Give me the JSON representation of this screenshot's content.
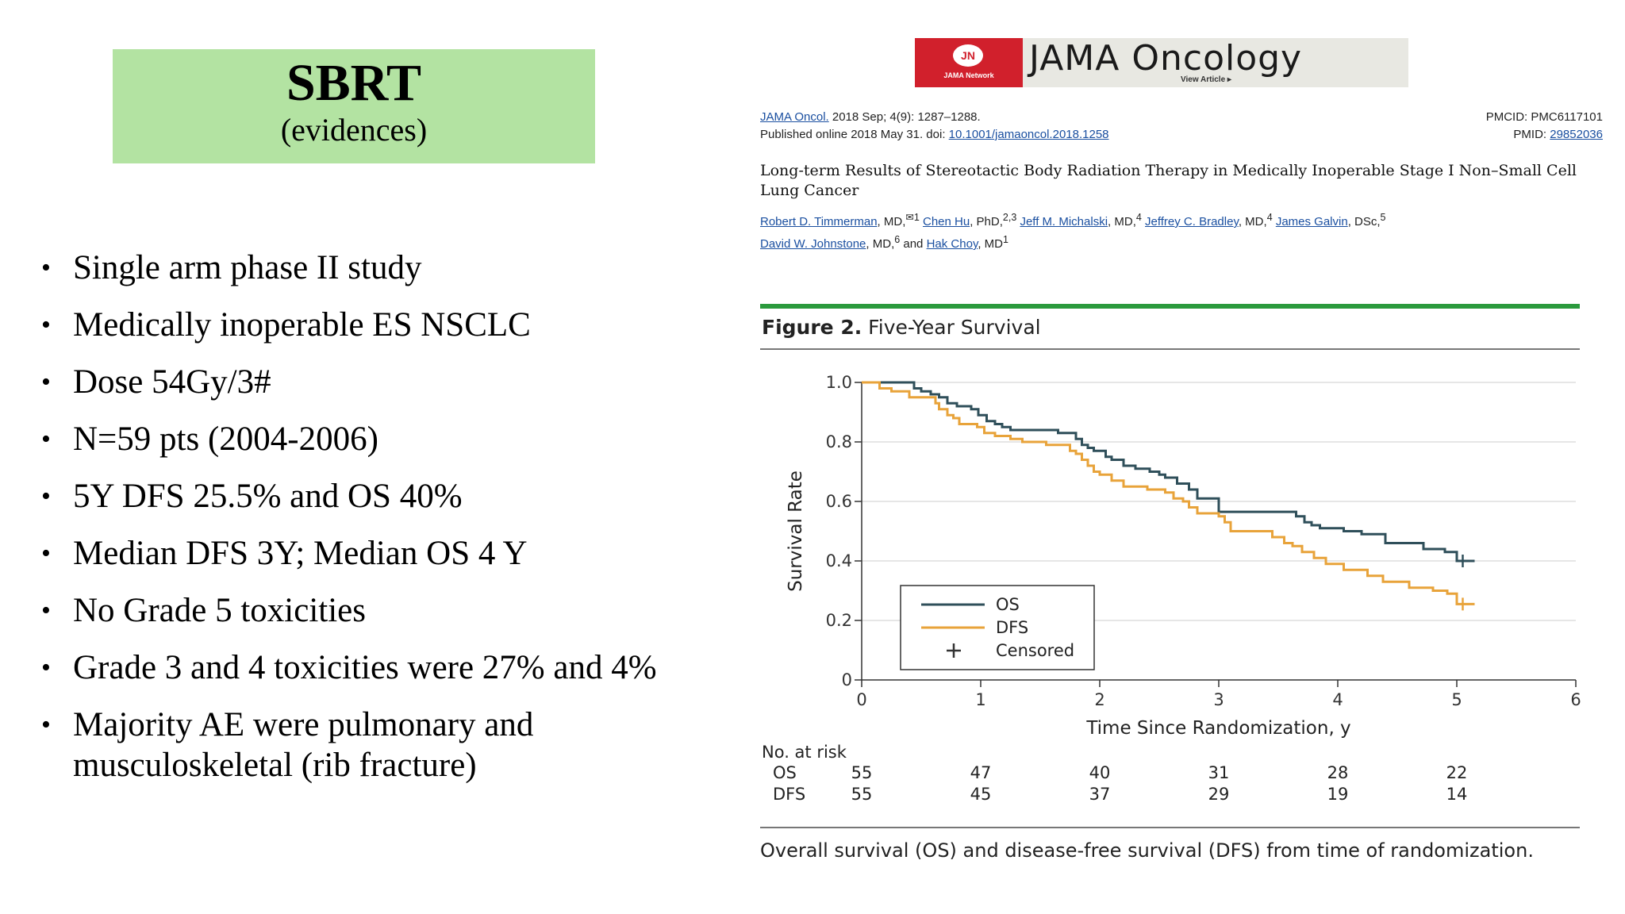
{
  "slide": {
    "title": "SBRT",
    "subtitle": "(evidences)",
    "bullets": [
      "Single arm phase II study",
      "Medically inoperable ES NSCLC",
      "Dose 54Gy/3#",
      "N=59 pts (2004-2006)",
      "5Y DFS 25.5% and OS 40%",
      "Median DFS 3Y; Median OS 4 Y",
      "No Grade 5 toxicities",
      "Grade 3 and 4 toxicities were 27% and 4%",
      "Majority AE were pulmonary and musculoskeletal (rib fracture)"
    ]
  },
  "article": {
    "journal": "JAMA Oncology",
    "logo_text": "JN",
    "network_label": "JAMA Network",
    "view_article": "View Article ▸",
    "journal_abbrev": "JAMA Oncol.",
    "citation": " 2018 Sep; 4(9): 1287–1288.",
    "published_prefix": "Published online 2018 May 31. doi: ",
    "doi": "10.1001/jamaoncol.2018.1258",
    "pmcid": "PMCID: PMC6117101",
    "pmid_label": "PMID: ",
    "pmid": "29852036",
    "title": "Long-term Results of Stereotactic Body Radiation Therapy in Medically Inoperable Stage I Non–Small Cell Lung Cancer",
    "authors": [
      {
        "name": "Robert D. Timmerman",
        "suffix": ", MD,",
        "sup": "✉1"
      },
      {
        "name": "Chen Hu",
        "suffix": ", PhD,",
        "sup": "2,3"
      },
      {
        "name": "Jeff M. Michalski",
        "suffix": ", MD,",
        "sup": "4"
      },
      {
        "name": "Jeffrey C. Bradley",
        "suffix": ", MD,",
        "sup": "4"
      },
      {
        "name": "James Galvin",
        "suffix": ", DSc,",
        "sup": "5"
      },
      {
        "name": "David W. Johnstone",
        "suffix": ", MD,",
        "sup": "6"
      },
      {
        "name": "Hak Choy",
        "suffix": ", MD",
        "sup": "1"
      }
    ],
    "and_word": " and ",
    "figure_label": "Figure 2.",
    "figure_title": " Five-Year Survival",
    "caption": "Overall survival (OS) and disease-free survival (DFS) from time of randomization."
  },
  "chart_data": {
    "type": "line",
    "xlabel": "Time Since Randomization, y",
    "ylabel": "Survival Rate",
    "xlim": [
      0,
      6
    ],
    "ylim": [
      0,
      1.0
    ],
    "x_ticks": [
      "0",
      "1",
      "2",
      "3",
      "4",
      "5",
      "6"
    ],
    "y_ticks": [
      "0",
      "0.2",
      "0.4",
      "0.6",
      "0.8",
      "1.0"
    ],
    "grid": true,
    "legend_position": "bottom-left",
    "series": [
      {
        "name": "OS",
        "color": "#2f4f5a",
        "x": [
          0,
          0.42,
          0.44,
          0.5,
          0.58,
          0.65,
          0.72,
          0.8,
          0.92,
          0.98,
          1.05,
          1.12,
          1.18,
          1.25,
          1.55,
          1.65,
          1.8,
          1.85,
          1.9,
          1.95,
          2.05,
          2.1,
          2.2,
          2.3,
          2.42,
          2.5,
          2.55,
          2.65,
          2.75,
          2.82,
          3.0,
          3.5,
          3.65,
          3.72,
          3.78,
          3.85,
          4.05,
          4.2,
          4.4,
          4.72,
          4.9,
          5.0,
          5.15
        ],
        "y": [
          1.0,
          1.0,
          0.98,
          0.97,
          0.96,
          0.95,
          0.93,
          0.92,
          0.91,
          0.89,
          0.87,
          0.86,
          0.85,
          0.84,
          0.84,
          0.83,
          0.81,
          0.79,
          0.78,
          0.77,
          0.75,
          0.74,
          0.72,
          0.71,
          0.7,
          0.69,
          0.68,
          0.66,
          0.64,
          0.61,
          0.565,
          0.565,
          0.55,
          0.53,
          0.52,
          0.51,
          0.5,
          0.49,
          0.46,
          0.44,
          0.43,
          0.4,
          0.4
        ]
      },
      {
        "name": "DFS",
        "color": "#e8a33a",
        "x": [
          0,
          0.15,
          0.25,
          0.4,
          0.62,
          0.65,
          0.72,
          0.77,
          0.82,
          0.97,
          1.03,
          1.12,
          1.25,
          1.35,
          1.55,
          1.75,
          1.8,
          1.85,
          1.9,
          1.95,
          2.0,
          2.1,
          2.2,
          2.4,
          2.55,
          2.62,
          2.7,
          2.75,
          2.82,
          3.0,
          3.05,
          3.1,
          3.45,
          3.55,
          3.62,
          3.7,
          3.8,
          3.9,
          4.05,
          4.25,
          4.38,
          4.6,
          4.8,
          4.92,
          5.0,
          5.15
        ],
        "y": [
          1.0,
          0.98,
          0.97,
          0.95,
          0.93,
          0.91,
          0.89,
          0.88,
          0.86,
          0.85,
          0.83,
          0.82,
          0.81,
          0.8,
          0.79,
          0.77,
          0.76,
          0.74,
          0.72,
          0.7,
          0.69,
          0.67,
          0.65,
          0.64,
          0.63,
          0.61,
          0.6,
          0.58,
          0.56,
          0.55,
          0.53,
          0.5,
          0.48,
          0.46,
          0.45,
          0.43,
          0.41,
          0.39,
          0.37,
          0.35,
          0.33,
          0.31,
          0.3,
          0.29,
          0.255,
          0.255
        ]
      }
    ],
    "censored": [
      {
        "series": "OS",
        "x": 5.05,
        "y": 0.4
      },
      {
        "series": "DFS",
        "x": 5.05,
        "y": 0.255
      }
    ],
    "legend": [
      "OS",
      "DFS",
      "Censored"
    ],
    "at_risk": {
      "title": "No. at risk",
      "times": [
        0,
        1,
        2,
        3,
        4,
        5
      ],
      "rows": [
        {
          "label": "OS",
          "values": [
            "55",
            "47",
            "40",
            "31",
            "28",
            "22"
          ]
        },
        {
          "label": "DFS",
          "values": [
            "55",
            "45",
            "37",
            "29",
            "19",
            "14"
          ]
        }
      ]
    }
  }
}
